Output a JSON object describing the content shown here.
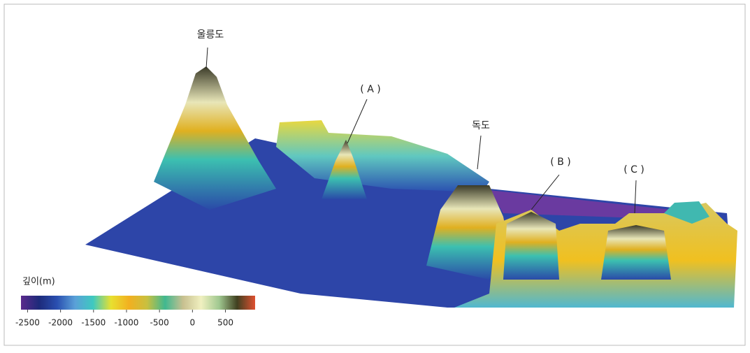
{
  "labels": {
    "ulleungdo": "울릉도",
    "a": "( A )",
    "dokdo": "독도",
    "b": "( B )",
    "c": "( C )"
  },
  "colorbar": {
    "title": "깊이(m)",
    "range": [
      -2600,
      950
    ],
    "ticks": [
      -2500,
      -2000,
      -1500,
      -1000,
      -500,
      0,
      500
    ],
    "colors": [
      "#5b2a8c",
      "#1d2a7a",
      "#2a4fb0",
      "#5aa0d8",
      "#3ec9c0",
      "#e8e030",
      "#f2b020",
      "#c8c040",
      "#40b890",
      "#c8c090",
      "#f0f0c0",
      "#a0c890",
      "#404020",
      "#e05030"
    ]
  }
}
